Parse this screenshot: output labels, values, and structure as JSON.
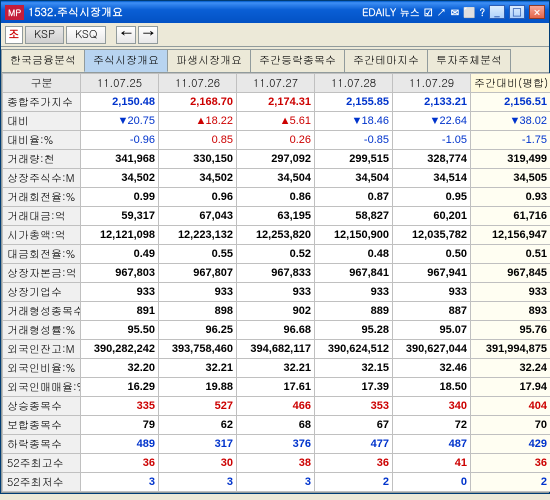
{
  "titlebar": {
    "mp": "MP",
    "title": "1532.주식시장개요",
    "news": "EDAILY 뉴스",
    "icons": [
      "☑",
      "↗",
      "✉",
      "⬜",
      "?"
    ]
  },
  "toolbar": {
    "sym": "조",
    "ksp": "KSP",
    "ksq": "KSQ",
    "left": "←",
    "right": "→"
  },
  "tabs": [
    "한국금융분석",
    "주식시장개요",
    "파생시장개요",
    "주간등락종목수",
    "주간테마지수",
    "투자주체분석"
  ],
  "header_label": "구분",
  "headers": [
    "11.07.25",
    "11.07.26",
    "11.07.27",
    "11.07.28",
    "11.07.29",
    "주간대비(평합)"
  ],
  "rows": [
    {
      "label": "종합주가지수",
      "bold": 1,
      "vals": [
        "2,150.48",
        "2,168.70",
        "2,174.31",
        "2,155.85",
        "2,133.21",
        "2,156.51"
      ],
      "colors": [
        "blue",
        "red",
        "red",
        "blue",
        "blue",
        "blue"
      ]
    },
    {
      "label": "대비",
      "vals": [
        "20.75",
        "18.22",
        "5.61",
        "18.46",
        "22.64",
        "38.02"
      ],
      "colors": [
        "blue",
        "red",
        "red",
        "blue",
        "blue",
        "blue"
      ],
      "markers": [
        "▼",
        "▲",
        "▲",
        "▼",
        "▼",
        "▼"
      ]
    },
    {
      "label": "대비율:%",
      "vals": [
        "-0.96",
        "0.85",
        "0.26",
        "-0.85",
        "-1.05",
        "-1.75"
      ],
      "colors": [
        "blue",
        "red",
        "red",
        "blue",
        "blue",
        "blue"
      ]
    },
    {
      "label": "거래량:천",
      "bold": 1,
      "vals": [
        "341,968",
        "330,150",
        "297,092",
        "299,515",
        "328,774",
        "319,499"
      ],
      "colors": [
        "black",
        "black",
        "black",
        "black",
        "black",
        "black"
      ]
    },
    {
      "label": "상장주식수:M",
      "bold": 1,
      "vals": [
        "34,502",
        "34,502",
        "34,504",
        "34,504",
        "34,514",
        "34,505"
      ],
      "colors": [
        "black",
        "black",
        "black",
        "black",
        "black",
        "black"
      ]
    },
    {
      "label": "거래회전율:%",
      "bold": 1,
      "vals": [
        "0.99",
        "0.96",
        "0.86",
        "0.87",
        "0.95",
        "0.93"
      ],
      "colors": [
        "black",
        "black",
        "black",
        "black",
        "black",
        "black"
      ]
    },
    {
      "label": "거래대금:억",
      "bold": 1,
      "vals": [
        "59,317",
        "67,043",
        "63,195",
        "58,827",
        "60,201",
        "61,716"
      ],
      "colors": [
        "black",
        "black",
        "black",
        "black",
        "black",
        "black"
      ]
    },
    {
      "label": "시가총액:억",
      "bold": 1,
      "vals": [
        "12,121,098",
        "12,223,132",
        "12,253,820",
        "12,150,900",
        "12,035,782",
        "12,156,947"
      ],
      "colors": [
        "black",
        "black",
        "black",
        "black",
        "black",
        "black"
      ]
    },
    {
      "label": "대금회전율:%",
      "bold": 1,
      "vals": [
        "0.49",
        "0.55",
        "0.52",
        "0.48",
        "0.50",
        "0.51"
      ],
      "colors": [
        "black",
        "black",
        "black",
        "black",
        "black",
        "black"
      ]
    },
    {
      "label": "상장자본금:억",
      "bold": 1,
      "vals": [
        "967,803",
        "967,807",
        "967,833",
        "967,841",
        "967,941",
        "967,845"
      ],
      "colors": [
        "black",
        "black",
        "black",
        "black",
        "black",
        "black"
      ]
    },
    {
      "label": "상장기업수",
      "bold": 1,
      "vals": [
        "933",
        "933",
        "933",
        "933",
        "933",
        "933"
      ],
      "colors": [
        "black",
        "black",
        "black",
        "black",
        "black",
        "black"
      ]
    },
    {
      "label": "거래형성종목수",
      "bold": 1,
      "vals": [
        "891",
        "898",
        "902",
        "889",
        "887",
        "893"
      ],
      "colors": [
        "black",
        "black",
        "black",
        "black",
        "black",
        "black"
      ]
    },
    {
      "label": "거래형성률:%",
      "bold": 1,
      "vals": [
        "95.50",
        "96.25",
        "96.68",
        "95.28",
        "95.07",
        "95.76"
      ],
      "colors": [
        "black",
        "black",
        "black",
        "black",
        "black",
        "black"
      ]
    },
    {
      "label": "외국인잔고:M",
      "bold": 1,
      "vals": [
        "390,282,242",
        "393,758,460",
        "394,682,117",
        "390,624,512",
        "390,627,044",
        "391,994,875"
      ],
      "colors": [
        "black",
        "black",
        "black",
        "black",
        "black",
        "black"
      ]
    },
    {
      "label": "외국인비율:%",
      "bold": 1,
      "vals": [
        "32.20",
        "32.21",
        "32.21",
        "32.15",
        "32.46",
        "32.24"
      ],
      "colors": [
        "black",
        "black",
        "black",
        "black",
        "black",
        "black"
      ]
    },
    {
      "label": "외국인매매율:%",
      "bold": 1,
      "vals": [
        "16.29",
        "19.88",
        "17.61",
        "17.39",
        "18.50",
        "17.94"
      ],
      "colors": [
        "black",
        "black",
        "black",
        "black",
        "black",
        "black"
      ]
    },
    {
      "label": "상승종목수",
      "bold": 1,
      "vals": [
        "335",
        "527",
        "466",
        "353",
        "340",
        "404"
      ],
      "colors": [
        "red",
        "red",
        "red",
        "red",
        "red",
        "red"
      ]
    },
    {
      "label": "보합종목수",
      "bold": 1,
      "vals": [
        "79",
        "62",
        "68",
        "67",
        "72",
        "70"
      ],
      "colors": [
        "black",
        "black",
        "black",
        "black",
        "black",
        "black"
      ]
    },
    {
      "label": "하락종목수",
      "bold": 1,
      "vals": [
        "489",
        "317",
        "376",
        "477",
        "487",
        "429"
      ],
      "colors": [
        "blue",
        "blue",
        "blue",
        "blue",
        "blue",
        "blue"
      ]
    },
    {
      "label": "52주최고수",
      "bold": 1,
      "vals": [
        "36",
        "30",
        "38",
        "36",
        "41",
        "36"
      ],
      "colors": [
        "red",
        "red",
        "red",
        "red",
        "red",
        "red"
      ]
    },
    {
      "label": "52주최저수",
      "bold": 1,
      "vals": [
        "3",
        "3",
        "3",
        "2",
        "0",
        "2"
      ],
      "colors": [
        "blue",
        "blue",
        "blue",
        "blue",
        "blue",
        "blue"
      ]
    }
  ]
}
